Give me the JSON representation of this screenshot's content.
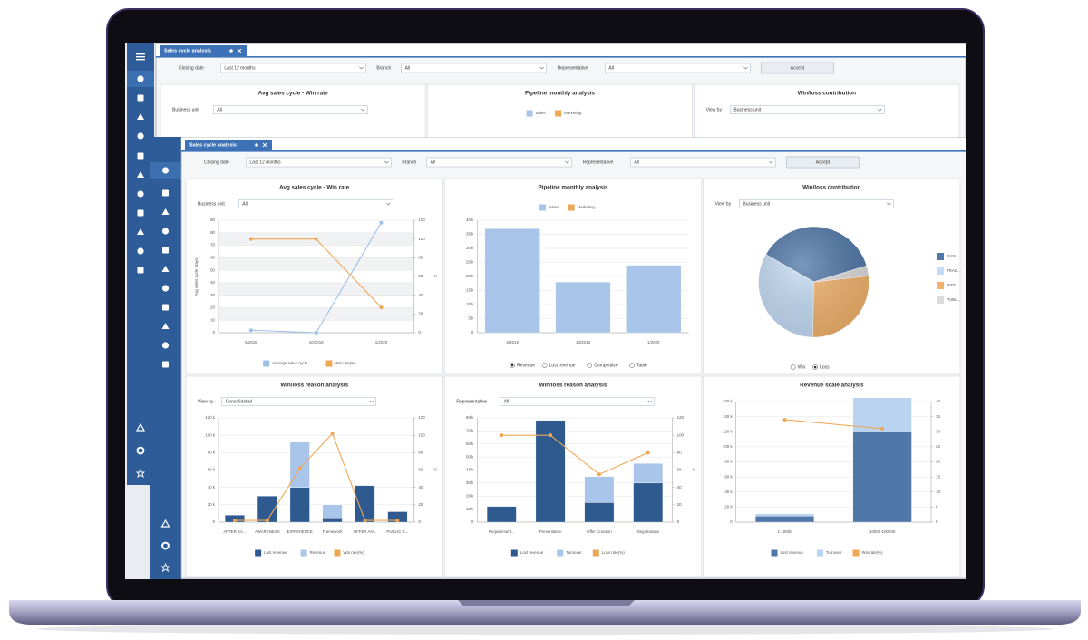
{
  "window": {
    "tab": "Sales cycle analysis",
    "filters": [
      {
        "label": "Closing date",
        "value": "Last 12 months"
      },
      {
        "label": "Branch",
        "value": "All"
      },
      {
        "label": "Representative",
        "value": "All"
      }
    ],
    "accept": "Accept"
  },
  "panels": [
    {
      "type": "line",
      "title": "Avg sales cycle - Win rate",
      "control": {
        "label": "Business unit",
        "value": "All"
      },
      "categories": [
        "6/2019",
        "10/2019",
        "1/2020"
      ],
      "y_label": "Avg sales cycle (days)",
      "y2_label": "%",
      "ylim": [
        0,
        90
      ],
      "yticks": [
        0,
        10,
        20,
        30,
        40,
        50,
        60,
        70,
        80,
        90
      ],
      "y2lim": [
        0,
        120
      ],
      "y2ticks": [
        0,
        20,
        40,
        60,
        80,
        100,
        120
      ],
      "bands": true,
      "legend": "bottom",
      "series": [
        {
          "name": "Average sales cycle",
          "color": "#9cc0ea",
          "kind": "line",
          "values": [
            2,
            0,
            88
          ]
        },
        {
          "name": "Win rate(%)",
          "color": "#f0a754",
          "kind": "line",
          "axis": "y2",
          "values": [
            100,
            100,
            27
          ]
        }
      ]
    },
    {
      "type": "bar",
      "title": "Pipeline monthly analysis",
      "categories": [
        "6/2019",
        "10/2019",
        "1/2020"
      ],
      "ylim": [
        0,
        40
      ],
      "yticks": [
        0,
        {
          "value": 5,
          "label": "5 k"
        },
        {
          "value": 10,
          "label": "10 k"
        },
        {
          "value": 15,
          "label": "15 k"
        },
        {
          "value": 20,
          "label": "20 k"
        },
        {
          "value": 25,
          "label": "25 k"
        },
        {
          "value": 30,
          "label": "30 k"
        },
        {
          "value": 35,
          "label": "35 k"
        },
        {
          "value": 40,
          "label": "40 k"
        }
      ],
      "legend": "top",
      "series": [
        {
          "name": "Sales",
          "color": "#a9c6ea",
          "kind": "bar",
          "values": [
            37,
            18,
            24
          ]
        },
        {
          "name": "Marketing",
          "color": "#f0a754",
          "kind": "bar",
          "values": [
            null,
            null,
            null
          ]
        }
      ],
      "options": [
        "Revenue",
        "Lost revenue",
        "Competitive",
        "Table"
      ],
      "selected": 0
    },
    {
      "type": "pie",
      "title": "Win/loss contribution",
      "control": {
        "label": "View by",
        "value": "Business unit"
      },
      "labels": [
        "BUSI...",
        "TRAD...",
        "INTE...",
        "PUBL..."
      ],
      "values": [
        37,
        33,
        27,
        3
      ],
      "colors": [
        "#4f77a8",
        "#c3dbf5",
        "#f2b36c",
        "#dcdcdc"
      ],
      "options": [
        "Win",
        "Loss"
      ],
      "selected": 1
    },
    {
      "type": "combo",
      "title": "Win/loss reason analysis",
      "control": {
        "label": "View by",
        "value": "Consolidated"
      },
      "categories": [
        "AFTER SA...",
        "AWARENESS",
        "EXPERIENCE",
        "Framework",
        "OFFER AN...",
        "PUBLIC R..."
      ],
      "ylim": [
        0,
        120
      ],
      "yticks": [
        0,
        {
          "value": 20,
          "label": "20 k"
        },
        {
          "value": 40,
          "label": "40 k"
        },
        {
          "value": 60,
          "label": "60 k"
        },
        {
          "value": 80,
          "label": "80 k"
        },
        {
          "value": 100,
          "label": "100 k"
        },
        {
          "value": 120,
          "label": "120 k"
        }
      ],
      "y2lim": [
        0,
        120
      ],
      "y2ticks": [
        0,
        20,
        40,
        60,
        80,
        100,
        120
      ],
      "y2_label": "%",
      "legend": "bottom",
      "series": [
        {
          "name": "Lost revenue",
          "color": "#2f5a8f",
          "kind": "bar",
          "values": [
            8,
            30,
            40,
            5,
            42,
            12
          ]
        },
        {
          "name": "Revenue",
          "color": "#a9c6ea",
          "kind": "bar",
          "values": [
            0,
            0,
            52,
            15,
            0,
            0
          ]
        },
        {
          "name": "Win rate(%)",
          "color": "#f0a754",
          "kind": "line",
          "axis": "y2",
          "values": [
            2,
            2,
            62,
            102,
            2,
            2
          ]
        }
      ]
    },
    {
      "type": "combo",
      "title": "Win/loss reason analysis",
      "control": {
        "label": "Representative",
        "value": "All"
      },
      "categories": [
        "Requirement...",
        "Presentation",
        "Offer Creation",
        "Negotiations"
      ],
      "ylim": [
        0,
        80
      ],
      "yticks": [
        0,
        {
          "value": 10,
          "label": "10 k"
        },
        {
          "value": 20,
          "label": "20 k"
        },
        {
          "value": 30,
          "label": "30 k"
        },
        {
          "value": 40,
          "label": "40 k"
        },
        {
          "value": 50,
          "label": "50 k"
        },
        {
          "value": 60,
          "label": "60 k"
        },
        {
          "value": 70,
          "label": "70 k"
        },
        {
          "value": 80,
          "label": "80 k"
        }
      ],
      "y2lim": [
        0,
        120
      ],
      "y2ticks": [
        0,
        20,
        40,
        60,
        80,
        100,
        120
      ],
      "y2_label": "%",
      "legend": "bottom",
      "series": [
        {
          "name": "Lost revenue",
          "color": "#2f5a8f",
          "kind": "bar",
          "values": [
            12,
            78,
            15,
            30
          ]
        },
        {
          "name": "Turnover",
          "color": "#a9c6ea",
          "kind": "bar",
          "values": [
            0,
            0,
            20,
            15
          ]
        },
        {
          "name": "Loss rate(%)",
          "color": "#f0a754",
          "kind": "line",
          "axis": "y2",
          "values": [
            100,
            100,
            55,
            80
          ]
        }
      ]
    },
    {
      "type": "combo",
      "title": "Revenue scale analysis",
      "categories": [
        "1-10000",
        "10000-100000"
      ],
      "ylim": [
        0,
        160
      ],
      "yticks": [
        0,
        {
          "value": 20,
          "label": "20 k"
        },
        {
          "value": 40,
          "label": "40 k"
        },
        {
          "value": 60,
          "label": "60 k"
        },
        {
          "value": 80,
          "label": "80 k"
        },
        {
          "value": 100,
          "label": "100 k"
        },
        {
          "value": 120,
          "label": "120 k"
        },
        {
          "value": 140,
          "label": "140 k"
        },
        {
          "value": 160,
          "label": "160 k"
        }
      ],
      "y2lim": [
        0,
        40
      ],
      "y2ticks": [
        0,
        5,
        10,
        15,
        20,
        25,
        30,
        35,
        40
      ],
      "legend": "bottom",
      "series": [
        {
          "name": "Lost revenue",
          "color": "#4f77a8",
          "kind": "bar",
          "values": [
            8,
            120
          ]
        },
        {
          "name": "Turnover",
          "color": "#b9d3f1",
          "kind": "bar",
          "values": [
            3,
            45
          ]
        },
        {
          "name": "Win rate(%)",
          "color": "#f0a754",
          "kind": "line",
          "axis": "y2",
          "values": [
            34,
            31
          ]
        }
      ]
    }
  ]
}
